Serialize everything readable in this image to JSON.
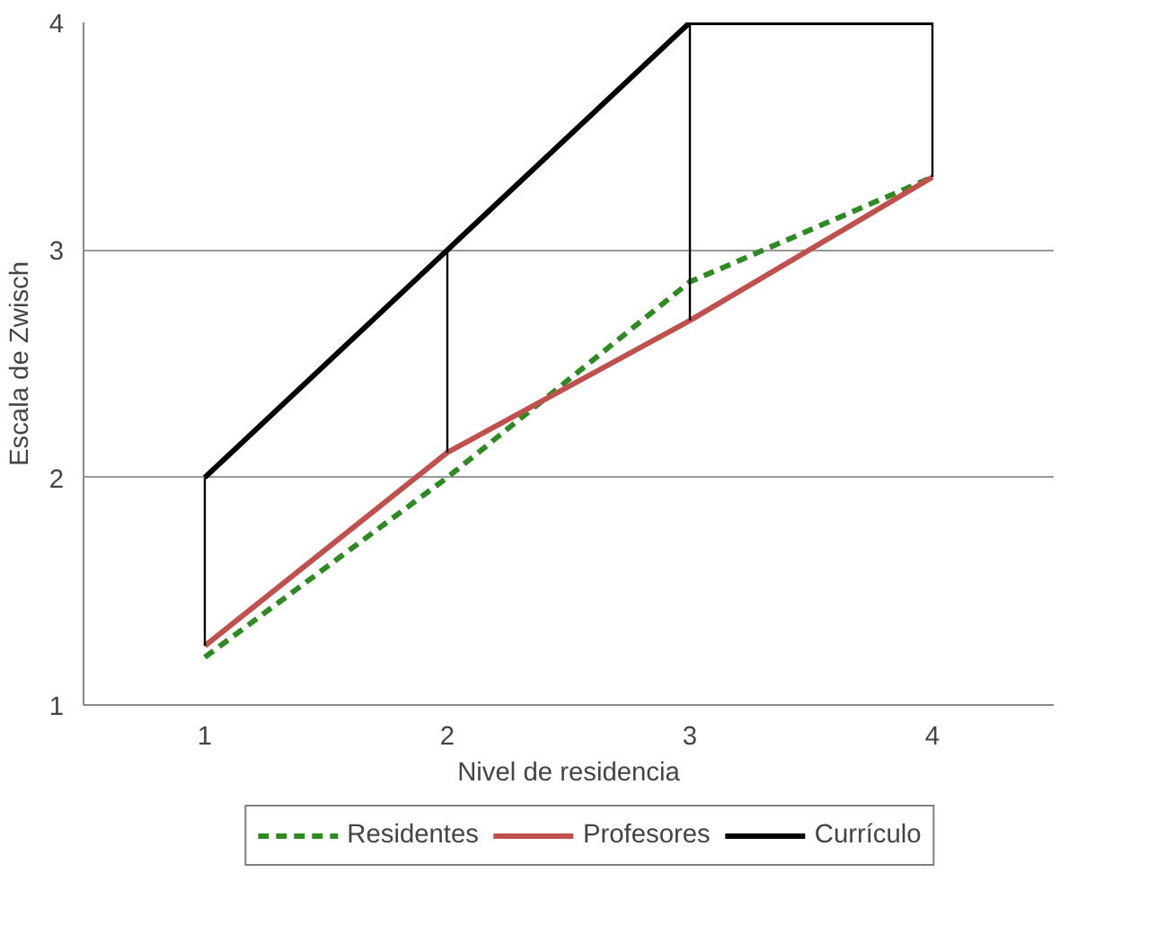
{
  "chart_data": {
    "type": "line",
    "xlabel": "Nivel de residencia",
    "ylabel": "Escala de Zwisch",
    "x": [
      1,
      2,
      3,
      4
    ],
    "xlim": [
      0.5,
      4.5
    ],
    "xticks": [
      1,
      2,
      3,
      4
    ],
    "ylim": [
      1,
      4
    ],
    "yticks": [
      1,
      2,
      3,
      4
    ],
    "grid": "y",
    "legend": "bottom",
    "marker": "none",
    "series": [
      {
        "name": "Residentes",
        "color": "#2e8b22",
        "line_style": "dashed",
        "values": [
          1.21,
          2.0,
          2.86,
          3.32
        ]
      },
      {
        "name": "Profesores",
        "color": "#c0504d",
        "line_style": "solid",
        "values": [
          1.26,
          2.11,
          2.69,
          3.32
        ]
      },
      {
        "name": "Currículo",
        "color": "#000000",
        "line_style": "solid",
        "values": [
          2,
          3,
          4,
          4
        ]
      },
      {
        "color": "#000000",
        "line_style": "solid",
        "x": [
          1,
          1
        ],
        "values": [
          2,
          1.26
        ]
      },
      {
        "color": "#000000",
        "line_style": "solid",
        "x": [
          2,
          2
        ],
        "values": [
          3,
          2.11
        ]
      },
      {
        "color": "#000000",
        "line_style": "solid",
        "x": [
          3,
          3
        ],
        "values": [
          4,
          2.69
        ]
      },
      {
        "color": "#000000",
        "line_style": "solid",
        "x": [
          4,
          4
        ],
        "values": [
          4,
          3.32
        ]
      }
    ]
  }
}
